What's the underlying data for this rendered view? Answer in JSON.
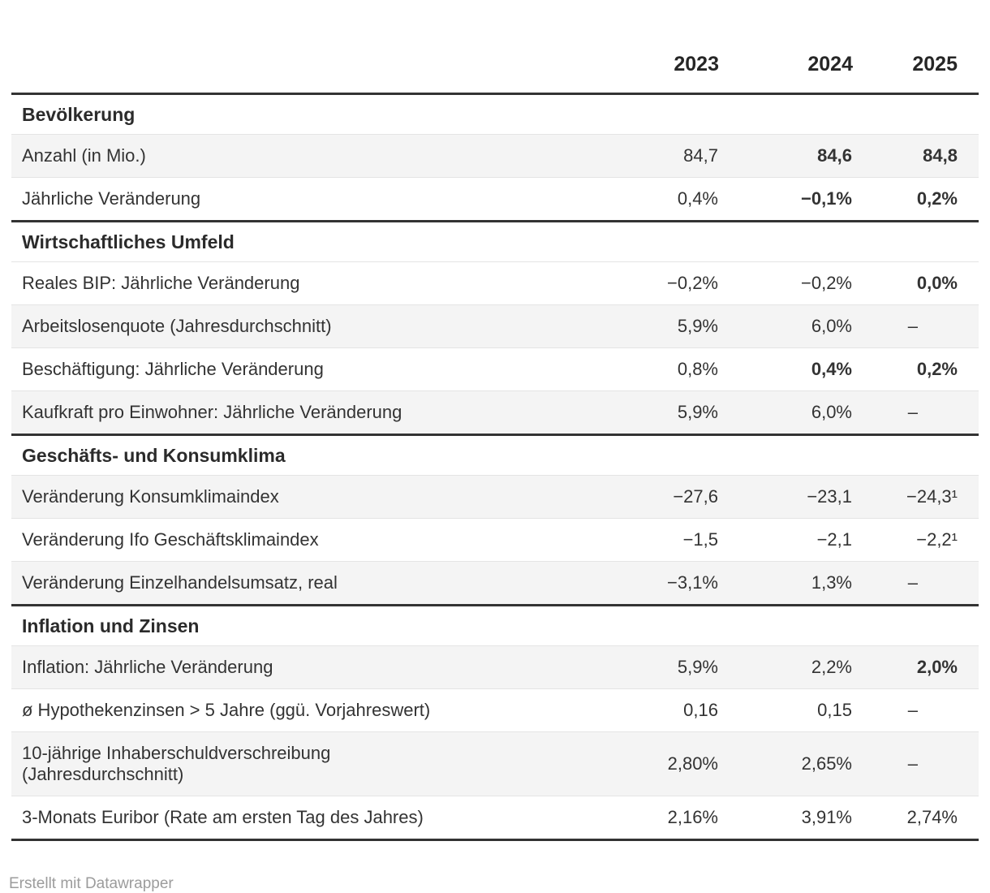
{
  "colors": {
    "accent_orange": "#f3a73c",
    "text": "#333333",
    "stripe_background": "#f4f4f4",
    "thin_border": "#e4e4e4",
    "thick_border": "#333333",
    "footer_text": "#9c9c9c"
  },
  "footer": {
    "attribution": "Erstellt mit Datawrapper"
  },
  "chart_data": {
    "type": "table",
    "title": "",
    "columns": [
      "2023",
      "2024",
      "2025"
    ],
    "layout": {
      "striped_rows": true,
      "numeric_alignment": "right",
      "section_dividers": "thick",
      "highlight_style": "orange bold"
    },
    "sections": [
      {
        "title": "Bevölkerung",
        "rows": [
          {
            "label": "Anzahl (in Mio.)",
            "values": [
              "84,7",
              "84,6",
              "84,8"
            ],
            "highlight": [
              false,
              true,
              true
            ]
          },
          {
            "label": "Jährliche Veränderung",
            "values": [
              "0,4%",
              "−0,1%",
              "0,2%"
            ],
            "highlight": [
              false,
              true,
              true
            ]
          }
        ]
      },
      {
        "title": "Wirtschaftliches Umfeld",
        "rows": [
          {
            "label": "Reales BIP: Jährliche Veränderung",
            "values": [
              "−0,2%",
              "−0,2%",
              "0,0%"
            ],
            "highlight": [
              false,
              false,
              true
            ]
          },
          {
            "label": "Arbeitslosenquote (Jahresdurchschnitt)",
            "values": [
              "5,9%",
              "6,0%",
              "–"
            ],
            "highlight": [
              false,
              false,
              false
            ]
          },
          {
            "label": "Beschäftigung: Jährliche Veränderung",
            "values": [
              "0,8%",
              "0,4%",
              "0,2%"
            ],
            "highlight": [
              false,
              true,
              true
            ]
          },
          {
            "label": "Kaufkraft pro Einwohner: Jährliche Veränderung",
            "values": [
              "5,9%",
              "6,0%",
              "–"
            ],
            "highlight": [
              false,
              false,
              false
            ]
          }
        ]
      },
      {
        "title": "Geschäfts- und Konsumklima",
        "rows": [
          {
            "label": "Veränderung Konsumklimaindex",
            "values": [
              "−27,6",
              "−23,1",
              "−24,3¹"
            ],
            "highlight": [
              false,
              false,
              false
            ]
          },
          {
            "label": "Veränderung Ifo Geschäftsklimaindex",
            "values": [
              "−1,5",
              "−2,1",
              "−2,2¹"
            ],
            "highlight": [
              false,
              false,
              false
            ]
          },
          {
            "label": "Veränderung Einzelhandelsumsatz, real",
            "values": [
              "−3,1%",
              "1,3%",
              "–"
            ],
            "highlight": [
              false,
              false,
              false
            ]
          }
        ]
      },
      {
        "title": "Inflation und Zinsen",
        "rows": [
          {
            "label": "Inflation: Jährliche Veränderung",
            "values": [
              "5,9%",
              "2,2%",
              "2,0%"
            ],
            "highlight": [
              false,
              false,
              true
            ]
          },
          {
            "label": "ø Hypothekenzinsen > 5 Jahre (ggü. Vorjahreswert)",
            "values": [
              "0,16",
              "0,15",
              "–"
            ],
            "highlight": [
              false,
              false,
              false
            ]
          },
          {
            "label": "10-jährige Inhaberschuldverschreibung\n(Jahresdurchschnitt)",
            "values": [
              "2,80%",
              "2,65%",
              "–"
            ],
            "highlight": [
              false,
              false,
              false
            ]
          },
          {
            "label": "3-Monats Euribor (Rate am ersten Tag des Jahres)",
            "values": [
              "2,16%",
              "3,91%",
              "2,74%"
            ],
            "highlight": [
              false,
              false,
              false
            ]
          }
        ]
      }
    ],
    "footnote_marker": "¹",
    "footer": "Erstellt mit Datawrapper"
  }
}
